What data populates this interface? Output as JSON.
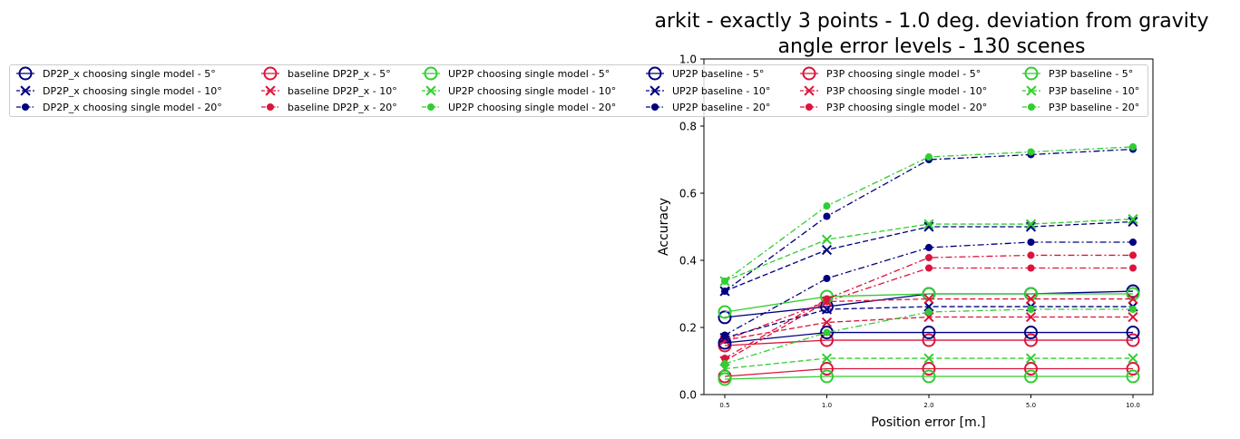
{
  "chart_data": {
    "type": "line",
    "title": [
      "arkit - exactly 3 points - 1.0 deg. deviation from gravity",
      "angle error levels - 130 scenes"
    ],
    "xlabel": "Position error [m.]",
    "ylabel": "Accuracy",
    "x_categories": [
      "0.5",
      "1.0",
      "2.0",
      "5.0",
      "10.0"
    ],
    "ylim": [
      0.0,
      1.0
    ],
    "yticks": [
      "0.0",
      "0.2",
      "0.4",
      "0.6",
      "0.8",
      "1.0"
    ],
    "grid": false,
    "legend_placement": "top, spanning full width in 6 columns",
    "colors": {
      "DP2P_x": "#000080",
      "baseline DP2P_x": "#dc143c",
      "UP2P": "#32cd32",
      "UP2P baseline": "#000080",
      "P3P": "#dc143c",
      "P3P baseline": "#32cd32"
    },
    "series": [
      {
        "name": "DP2P_x choosing single model - 5°",
        "color": "#000080",
        "marker": "circle",
        "linestyle": "solid",
        "values": [
          0.23,
          0.262,
          0.3,
          0.3,
          0.308
        ]
      },
      {
        "name": "DP2P_x choosing single model - 10°",
        "color": "#000080",
        "marker": "x",
        "linestyle": "dashed",
        "values": [
          0.308,
          0.431,
          0.5,
          0.5,
          0.515
        ]
      },
      {
        "name": "DP2P_x choosing single model - 20°",
        "color": "#000080",
        "marker": "dot",
        "linestyle": "dashdot",
        "values": [
          0.308,
          0.531,
          0.7,
          0.715,
          0.731
        ]
      },
      {
        "name": "baseline DP2P_x - 5°",
        "color": "#dc143c",
        "marker": "circle",
        "linestyle": "solid",
        "values": [
          0.146,
          0.162,
          0.162,
          0.162,
          0.162
        ]
      },
      {
        "name": "baseline DP2P_x - 10°",
        "color": "#dc143c",
        "marker": "x",
        "linestyle": "dashed",
        "values": [
          0.162,
          0.215,
          0.231,
          0.231,
          0.231
        ]
      },
      {
        "name": "baseline DP2P_x - 20°",
        "color": "#dc143c",
        "marker": "dot",
        "linestyle": "dashdot",
        "values": [
          0.162,
          0.277,
          0.377,
          0.377,
          0.377
        ]
      },
      {
        "name": "UP2P choosing single model - 5°",
        "color": "#32cd32",
        "marker": "circle",
        "linestyle": "solid",
        "values": [
          0.246,
          0.292,
          0.3,
          0.3,
          0.3
        ]
      },
      {
        "name": "UP2P choosing single model - 10°",
        "color": "#32cd32",
        "marker": "x",
        "linestyle": "dashed",
        "values": [
          0.338,
          0.462,
          0.508,
          0.508,
          0.523
        ]
      },
      {
        "name": "UP2P choosing single model - 20°",
        "color": "#32cd32",
        "marker": "dot",
        "linestyle": "dashdot",
        "values": [
          0.338,
          0.562,
          0.708,
          0.723,
          0.738
        ]
      },
      {
        "name": "UP2P baseline - 5°",
        "color": "#000080",
        "marker": "circle",
        "linestyle": "solid",
        "values": [
          0.154,
          0.185,
          0.185,
          0.185,
          0.185
        ]
      },
      {
        "name": "UP2P baseline - 10°",
        "color": "#000080",
        "marker": "x",
        "linestyle": "dashed",
        "values": [
          0.169,
          0.254,
          0.262,
          0.262,
          0.262
        ]
      },
      {
        "name": "UP2P baseline - 20°",
        "color": "#000080",
        "marker": "dot",
        "linestyle": "dashdot",
        "values": [
          0.177,
          0.346,
          0.438,
          0.454,
          0.454
        ]
      },
      {
        "name": "P3P choosing single model - 5°",
        "color": "#dc143c",
        "marker": "circle",
        "linestyle": "solid",
        "values": [
          0.054,
          0.077,
          0.077,
          0.077,
          0.077
        ]
      },
      {
        "name": "P3P choosing single model - 10°",
        "color": "#dc143c",
        "marker": "x",
        "linestyle": "dashed",
        "values": [
          0.1,
          0.277,
          0.285,
          0.285,
          0.285
        ]
      },
      {
        "name": "P3P choosing single model - 20°",
        "color": "#dc143c",
        "marker": "dot",
        "linestyle": "dashdot",
        "values": [
          0.108,
          0.285,
          0.408,
          0.415,
          0.415
        ]
      },
      {
        "name": "P3P baseline - 5°",
        "color": "#32cd32",
        "marker": "circle",
        "linestyle": "solid",
        "values": [
          0.046,
          0.054,
          0.054,
          0.054,
          0.054
        ]
      },
      {
        "name": "P3P baseline - 10°",
        "color": "#32cd32",
        "marker": "x",
        "linestyle": "dashed",
        "values": [
          0.077,
          0.108,
          0.108,
          0.108,
          0.108
        ]
      },
      {
        "name": "P3P baseline - 20°",
        "color": "#32cd32",
        "marker": "dot",
        "linestyle": "dashdot",
        "values": [
          0.092,
          0.185,
          0.246,
          0.254,
          0.254
        ]
      }
    ]
  }
}
